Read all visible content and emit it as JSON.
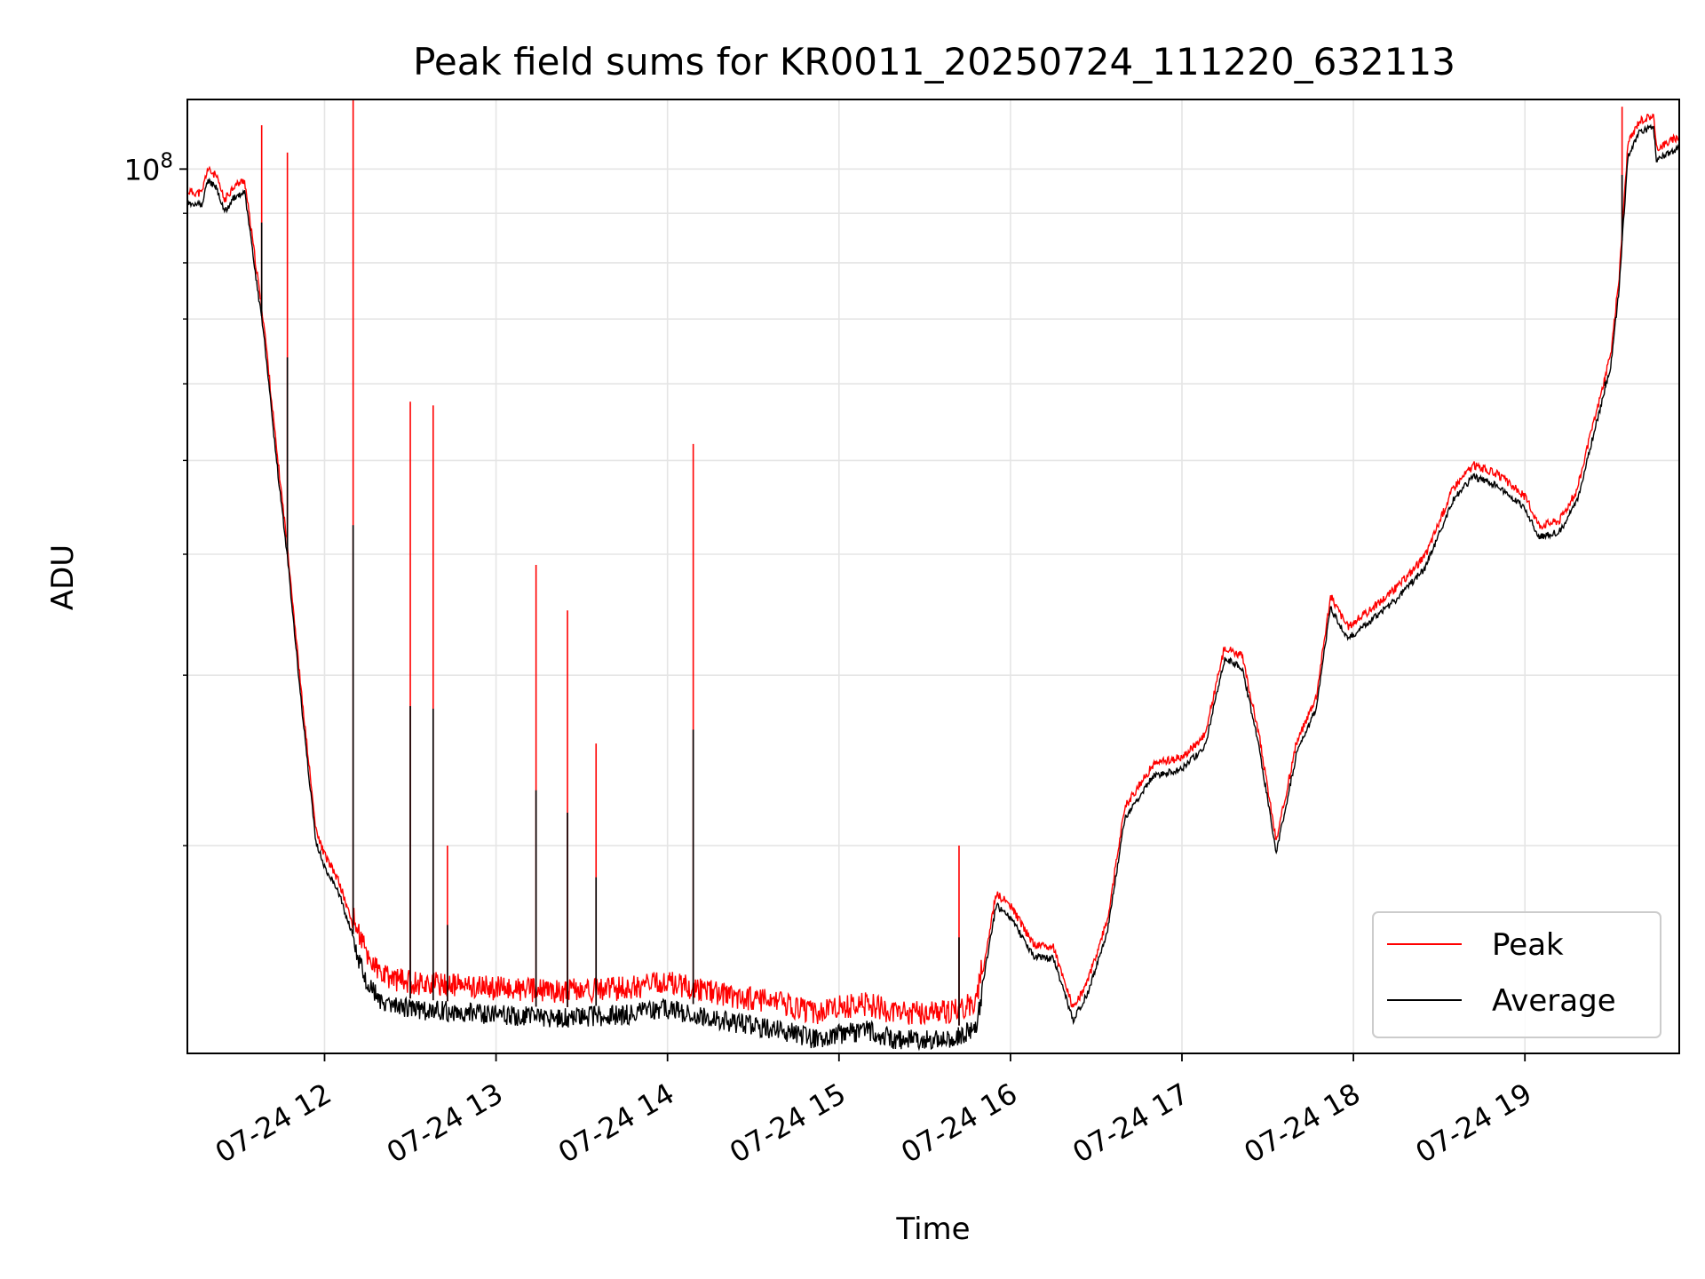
{
  "chart_data": {
    "type": "line",
    "title": "Peak field sums for KR0011_20250724_111220_632113",
    "xlabel": "Time",
    "ylabel": "ADU",
    "yscale": "log",
    "x_range": [
      "2025-07-24 11:12",
      "2025-07-24 19:54"
    ],
    "ylim": [
      12200000,
      118000000
    ],
    "grid": true,
    "legend_position": "lower right",
    "colors": {
      "Peak": "#ff0000",
      "Average": "#000000"
    },
    "x_ticks": [
      {
        "t": "2025-07-24 12:00",
        "label": "07-24 12"
      },
      {
        "t": "2025-07-24 13:00",
        "label": "07-24 13"
      },
      {
        "t": "2025-07-24 14:00",
        "label": "07-24 14"
      },
      {
        "t": "2025-07-24 15:00",
        "label": "07-24 15"
      },
      {
        "t": "2025-07-24 16:00",
        "label": "07-24 16"
      },
      {
        "t": "2025-07-24 17:00",
        "label": "07-24 17"
      },
      {
        "t": "2025-07-24 18:00",
        "label": "07-24 18"
      },
      {
        "t": "2025-07-24 19:00",
        "label": "07-24 19"
      }
    ],
    "y_ticks": [
      {
        "value": 100000000,
        "label": "10",
        "exponent": "8"
      }
    ],
    "y_minor_ticks": [
      20000000,
      30000000,
      40000000,
      50000000,
      60000000,
      70000000,
      80000000,
      90000000
    ],
    "series": [
      {
        "name": "Average",
        "points": [
          [
            "2025-07-24 11:12",
            93000000
          ],
          [
            "2025-07-24 11:17",
            92500000
          ],
          [
            "2025-07-24 11:19",
            98000000
          ],
          [
            "2025-07-24 11:22",
            96500000
          ],
          [
            "2025-07-24 11:25",
            91000000
          ],
          [
            "2025-07-24 11:28",
            94000000
          ],
          [
            "2025-07-24 11:32",
            95500000
          ],
          [
            "2025-07-24 11:39",
            67000000
          ],
          [
            "2025-07-24 11:43",
            51000000
          ],
          [
            "2025-07-24 11:47",
            40000000
          ],
          [
            "2025-07-24 11:52",
            28000000
          ],
          [
            "2025-07-24 11:57",
            20300000
          ],
          [
            "2025-07-24 12:00",
            19200000
          ],
          [
            "2025-07-24 12:05",
            18000000
          ],
          [
            "2025-07-24 12:10",
            16200000
          ],
          [
            "2025-07-24 12:15",
            14800000
          ],
          [
            "2025-07-24 12:20",
            14100000
          ],
          [
            "2025-07-24 12:30",
            13900000
          ],
          [
            "2025-07-24 12:45",
            13800000
          ],
          [
            "2025-07-24 13:00",
            13700000
          ],
          [
            "2025-07-24 13:20",
            13600000
          ],
          [
            "2025-07-24 13:45",
            13700000
          ],
          [
            "2025-07-24 14:00",
            13900000
          ],
          [
            "2025-07-24 14:20",
            13500000
          ],
          [
            "2025-07-24 14:40",
            13200000
          ],
          [
            "2025-07-24 14:53",
            12900000
          ],
          [
            "2025-07-24 15:00",
            13100000
          ],
          [
            "2025-07-24 15:10",
            13200000
          ],
          [
            "2025-07-24 15:20",
            12900000
          ],
          [
            "2025-07-24 15:40",
            12950000
          ],
          [
            "2025-07-24 15:48",
            13300000
          ],
          [
            "2025-07-24 15:55",
            17500000
          ],
          [
            "2025-07-24 16:00",
            17000000
          ],
          [
            "2025-07-24 16:08",
            15500000
          ],
          [
            "2025-07-24 16:15",
            15400000
          ],
          [
            "2025-07-24 16:22",
            13300000
          ],
          [
            "2025-07-24 16:27",
            14200000
          ],
          [
            "2025-07-24 16:34",
            16500000
          ],
          [
            "2025-07-24 16:40",
            21500000
          ],
          [
            "2025-07-24 16:50",
            23800000
          ],
          [
            "2025-07-24 17:00",
            24200000
          ],
          [
            "2025-07-24 17:08",
            25500000
          ],
          [
            "2025-07-24 17:15",
            31500000
          ],
          [
            "2025-07-24 17:21",
            30800000
          ],
          [
            "2025-07-24 17:27",
            25500000
          ],
          [
            "2025-07-24 17:33",
            19800000
          ],
          [
            "2025-07-24 17:40",
            25000000
          ],
          [
            "2025-07-24 17:47",
            28000000
          ],
          [
            "2025-07-24 17:52",
            35500000
          ],
          [
            "2025-07-24 17:58",
            33000000
          ],
          [
            "2025-07-24 18:05",
            34200000
          ],
          [
            "2025-07-24 18:15",
            36200000
          ],
          [
            "2025-07-24 18:25",
            39000000
          ],
          [
            "2025-07-24 18:35",
            46000000
          ],
          [
            "2025-07-24 18:42",
            48500000
          ],
          [
            "2025-07-24 18:50",
            47500000
          ],
          [
            "2025-07-24 19:00",
            45000000
          ],
          [
            "2025-07-24 19:05",
            42000000
          ],
          [
            "2025-07-24 19:12",
            42500000
          ],
          [
            "2025-07-24 19:18",
            45500000
          ],
          [
            "2025-07-24 19:25",
            55000000
          ],
          [
            "2025-07-24 19:30",
            63000000
          ],
          [
            "2025-07-24 19:33",
            76000000
          ],
          [
            "2025-07-24 19:36",
            104000000
          ],
          [
            "2025-07-24 19:40",
            110000000
          ],
          [
            "2025-07-24 19:45",
            111500000
          ],
          [
            "2025-07-24 19:46",
            103000000
          ],
          [
            "2025-07-24 19:54",
            106000000
          ]
        ]
      },
      {
        "name": "Peak",
        "spikes": [
          [
            "2025-07-24 11:38",
            111000000
          ],
          [
            "2025-07-24 11:47",
            104000000
          ],
          [
            "2025-07-24 12:10",
            118000000
          ],
          [
            "2025-07-24 12:30",
            57500000
          ],
          [
            "2025-07-24 12:38",
            57000000
          ],
          [
            "2025-07-24 12:43",
            20000000
          ],
          [
            "2025-07-24 13:14",
            39000000
          ],
          [
            "2025-07-24 13:25",
            35000000
          ],
          [
            "2025-07-24 13:35",
            25500000
          ],
          [
            "2025-07-24 14:09",
            52000000
          ],
          [
            "2025-07-24 15:42",
            20000000
          ],
          [
            "2025-07-24 19:28",
            61000000
          ],
          [
            "2025-07-24 19:34",
            116000000
          ]
        ]
      }
    ],
    "legend": [
      {
        "name": "Peak",
        "label": "Peak"
      },
      {
        "name": "Average",
        "label": "Average"
      }
    ]
  }
}
